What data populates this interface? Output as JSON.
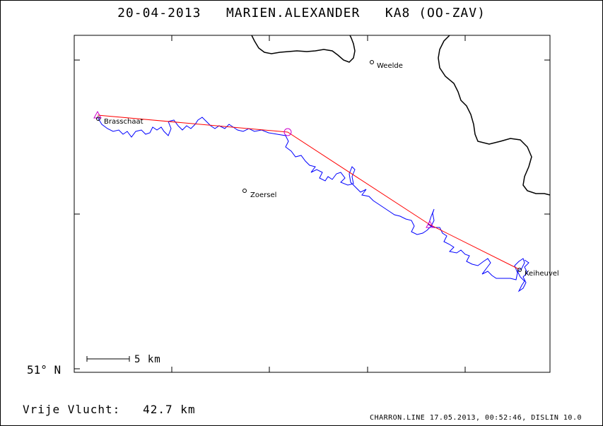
{
  "header": {
    "date": "20-04-2013",
    "pilot": "MARIEN.ALEXANDER",
    "glider": "KA8 (OO-ZAV)"
  },
  "map": {
    "latitude_label": "51° N",
    "scale_label": "5 km",
    "places": [
      {
        "name": "Brasschaat"
      },
      {
        "name": "Weelde"
      },
      {
        "name": "Zoersel"
      },
      {
        "name": "Keiheuvel"
      }
    ],
    "colors": {
      "track": "#0000ff",
      "task_line": "#ff0000",
      "turnpoint": "#cc00cc",
      "border": "#000000"
    }
  },
  "summary": {
    "label": "Vrije Vlucht:",
    "distance": "42.7 km"
  },
  "footer": {
    "text": "CHARRON.LINE 17.05.2013, 00:52:46, DISLIN 10.0"
  }
}
